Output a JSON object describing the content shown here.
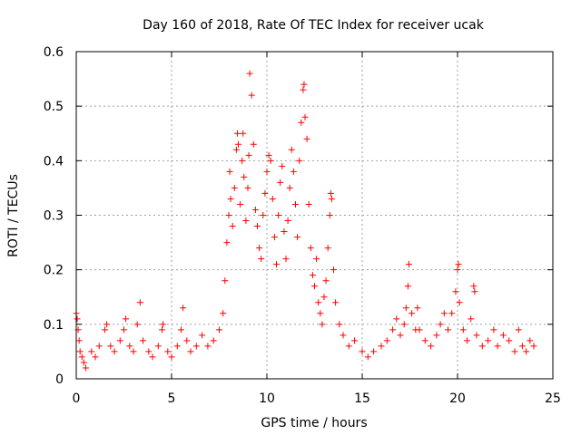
{
  "chart_data": {
    "type": "scatter",
    "title": "Day 160 of 2018, Rate Of TEC Index for receiver ucak",
    "xlabel": "GPS time / hours",
    "ylabel": "ROTI / TECUs",
    "xlim": [
      0,
      25
    ],
    "ylim": [
      0,
      0.6
    ],
    "x_ticks": [
      0,
      5,
      10,
      15,
      20,
      25
    ],
    "x_tick_labels": [
      "0",
      "5",
      "10",
      "15",
      "20",
      "25"
    ],
    "y_ticks": [
      0,
      0.1,
      0.2,
      0.3,
      0.4,
      0.5,
      0.6
    ],
    "y_tick_labels": [
      "0",
      "0.1",
      "0.2",
      "0.3",
      "0.4",
      "0.5",
      "0.6"
    ],
    "grid": true,
    "marker": "plus",
    "marker_color": "#ff0000",
    "series": [
      {
        "name": "ROTI",
        "points": [
          [
            0.0,
            0.12
          ],
          [
            0.05,
            0.11
          ],
          [
            0.1,
            0.09
          ],
          [
            0.15,
            0.07
          ],
          [
            0.2,
            0.05
          ],
          [
            0.3,
            0.04
          ],
          [
            0.4,
            0.03
          ],
          [
            0.5,
            0.02
          ],
          [
            0.8,
            0.05
          ],
          [
            1.0,
            0.04
          ],
          [
            1.2,
            0.06
          ],
          [
            1.5,
            0.09
          ],
          [
            1.6,
            0.1
          ],
          [
            1.8,
            0.06
          ],
          [
            2.0,
            0.05
          ],
          [
            2.3,
            0.07
          ],
          [
            2.5,
            0.09
          ],
          [
            2.6,
            0.11
          ],
          [
            2.8,
            0.06
          ],
          [
            3.0,
            0.05
          ],
          [
            3.2,
            0.1
          ],
          [
            3.35,
            0.14
          ],
          [
            3.5,
            0.07
          ],
          [
            3.8,
            0.05
          ],
          [
            4.0,
            0.04
          ],
          [
            4.3,
            0.06
          ],
          [
            4.5,
            0.09
          ],
          [
            4.55,
            0.1
          ],
          [
            4.8,
            0.05
          ],
          [
            5.0,
            0.04
          ],
          [
            5.3,
            0.06
          ],
          [
            5.5,
            0.09
          ],
          [
            5.6,
            0.13
          ],
          [
            5.8,
            0.07
          ],
          [
            6.0,
            0.05
          ],
          [
            6.3,
            0.06
          ],
          [
            6.6,
            0.08
          ],
          [
            6.9,
            0.06
          ],
          [
            7.2,
            0.07
          ],
          [
            7.5,
            0.09
          ],
          [
            7.7,
            0.12
          ],
          [
            7.8,
            0.18
          ],
          [
            7.9,
            0.25
          ],
          [
            8.0,
            0.3
          ],
          [
            8.05,
            0.38
          ],
          [
            8.1,
            0.33
          ],
          [
            8.2,
            0.28
          ],
          [
            8.3,
            0.35
          ],
          [
            8.4,
            0.42
          ],
          [
            8.45,
            0.45
          ],
          [
            8.5,
            0.43
          ],
          [
            8.6,
            0.32
          ],
          [
            8.7,
            0.4
          ],
          [
            8.75,
            0.45
          ],
          [
            8.8,
            0.37
          ],
          [
            8.9,
            0.29
          ],
          [
            9.0,
            0.35
          ],
          [
            9.05,
            0.41
          ],
          [
            9.1,
            0.56
          ],
          [
            9.2,
            0.52
          ],
          [
            9.3,
            0.43
          ],
          [
            9.4,
            0.31
          ],
          [
            9.5,
            0.28
          ],
          [
            9.6,
            0.24
          ],
          [
            9.7,
            0.22
          ],
          [
            9.8,
            0.3
          ],
          [
            9.9,
            0.34
          ],
          [
            10.0,
            0.38
          ],
          [
            10.1,
            0.41
          ],
          [
            10.2,
            0.4
          ],
          [
            10.3,
            0.33
          ],
          [
            10.4,
            0.26
          ],
          [
            10.5,
            0.21
          ],
          [
            10.6,
            0.3
          ],
          [
            10.7,
            0.36
          ],
          [
            10.8,
            0.39
          ],
          [
            10.9,
            0.27
          ],
          [
            11.0,
            0.22
          ],
          [
            11.1,
            0.29
          ],
          [
            11.2,
            0.35
          ],
          [
            11.3,
            0.42
          ],
          [
            11.4,
            0.38
          ],
          [
            11.5,
            0.32
          ],
          [
            11.6,
            0.26
          ],
          [
            11.7,
            0.4
          ],
          [
            11.8,
            0.47
          ],
          [
            11.9,
            0.53
          ],
          [
            11.95,
            0.54
          ],
          [
            12.0,
            0.48
          ],
          [
            12.1,
            0.44
          ],
          [
            12.2,
            0.32
          ],
          [
            12.3,
            0.24
          ],
          [
            12.4,
            0.19
          ],
          [
            12.5,
            0.17
          ],
          [
            12.6,
            0.22
          ],
          [
            12.7,
            0.14
          ],
          [
            12.8,
            0.12
          ],
          [
            12.9,
            0.1
          ],
          [
            13.0,
            0.15
          ],
          [
            13.1,
            0.18
          ],
          [
            13.2,
            0.24
          ],
          [
            13.3,
            0.3
          ],
          [
            13.35,
            0.34
          ],
          [
            13.4,
            0.33
          ],
          [
            13.5,
            0.2
          ],
          [
            13.6,
            0.14
          ],
          [
            13.8,
            0.1
          ],
          [
            14.0,
            0.08
          ],
          [
            14.3,
            0.06
          ],
          [
            14.6,
            0.07
          ],
          [
            15.0,
            0.05
          ],
          [
            15.3,
            0.04
          ],
          [
            15.6,
            0.05
          ],
          [
            16.0,
            0.06
          ],
          [
            16.3,
            0.07
          ],
          [
            16.6,
            0.09
          ],
          [
            16.8,
            0.11
          ],
          [
            17.0,
            0.08
          ],
          [
            17.2,
            0.1
          ],
          [
            17.3,
            0.13
          ],
          [
            17.4,
            0.17
          ],
          [
            17.45,
            0.21
          ],
          [
            17.6,
            0.12
          ],
          [
            17.8,
            0.09
          ],
          [
            17.9,
            0.13
          ],
          [
            18.0,
            0.09
          ],
          [
            18.3,
            0.07
          ],
          [
            18.6,
            0.06
          ],
          [
            18.9,
            0.08
          ],
          [
            19.1,
            0.1
          ],
          [
            19.3,
            0.12
          ],
          [
            19.5,
            0.09
          ],
          [
            19.7,
            0.12
          ],
          [
            19.9,
            0.16
          ],
          [
            20.0,
            0.2
          ],
          [
            20.05,
            0.21
          ],
          [
            20.1,
            0.14
          ],
          [
            20.3,
            0.09
          ],
          [
            20.5,
            0.07
          ],
          [
            20.7,
            0.11
          ],
          [
            20.85,
            0.17
          ],
          [
            20.9,
            0.16
          ],
          [
            21.0,
            0.08
          ],
          [
            21.3,
            0.06
          ],
          [
            21.6,
            0.07
          ],
          [
            21.9,
            0.09
          ],
          [
            22.1,
            0.06
          ],
          [
            22.4,
            0.08
          ],
          [
            22.7,
            0.07
          ],
          [
            23.0,
            0.05
          ],
          [
            23.2,
            0.09
          ],
          [
            23.4,
            0.06
          ],
          [
            23.6,
            0.05
          ],
          [
            23.8,
            0.07
          ],
          [
            24.0,
            0.06
          ]
        ]
      }
    ]
  }
}
